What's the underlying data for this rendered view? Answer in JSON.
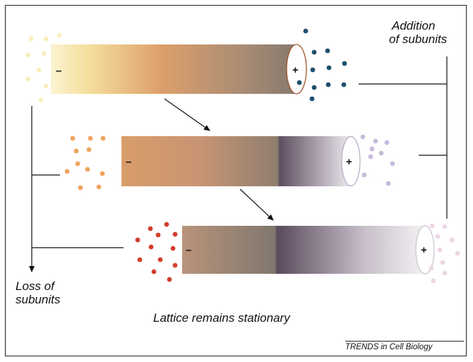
{
  "labels": {
    "addition_line1": "Addition",
    "addition_line2": "of subunits",
    "loss_line1": "Loss of",
    "loss_line2": "subunits",
    "caption": "Lattice remains stationary",
    "credit": "TRENDS in Cell Biology"
  },
  "ends": {
    "minus": "–",
    "plus": "+"
  },
  "colors": {
    "yellow_subunit": "#f7efbf",
    "orange_subunit": "#f0a460",
    "red_subunit": "#d23f2c",
    "blue_subunit": "#1f4f6e",
    "lavender_subunit": "#c8badb",
    "pink_subunit": "#ecd6e6"
  }
}
